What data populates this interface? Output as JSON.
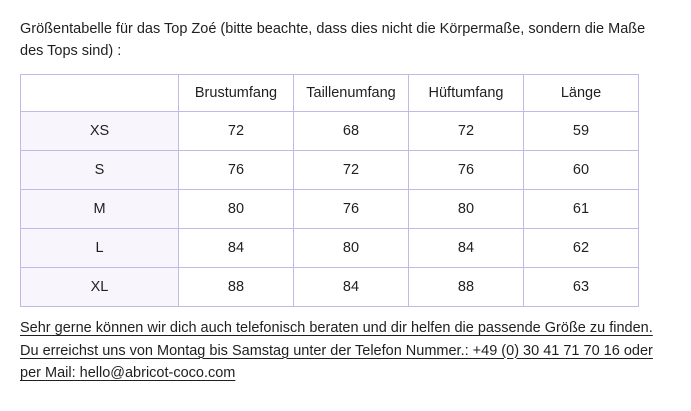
{
  "intro": {
    "lines": [
      "Größentabelle für das Top Zoé (bitte beachte, dass dies nicht die Körpermaße, sondern die Maße",
      "des Tops sind) :"
    ]
  },
  "table": {
    "headers": [
      "",
      "Brustumfang",
      "Taillenumfang",
      "Hüftumfang",
      "Länge"
    ],
    "rows": [
      {
        "size": "XS",
        "values": [
          "72",
          "68",
          "72",
          "59"
        ]
      },
      {
        "size": "S",
        "values": [
          "76",
          "72",
          "76",
          "60"
        ]
      },
      {
        "size": "M",
        "values": [
          "80",
          "76",
          "80",
          "61"
        ]
      },
      {
        "size": "L",
        "values": [
          "84",
          "80",
          "84",
          "62"
        ]
      },
      {
        "size": "XL",
        "values": [
          "88",
          "84",
          "88",
          "63"
        ]
      }
    ]
  },
  "contact": {
    "lines": [
      "Sehr gerne können wir dich auch telefonisch beraten und dir helfen die passende Größe zu finden.",
      "Du erreichst uns von Montag bis Samstag unter der Telefon Nummer.: +49 (0) 30 41 71 70 16 oder",
      "per Mail: hello@abricot-coco.com"
    ],
    "phone": "+49 (0) 30 41 71 70 16",
    "email": "hello@abricot-coco.com"
  },
  "colors": {
    "table_border": "#c3b9e8",
    "size_column_bg": "#f9f5fc",
    "text": "#1f1f1f",
    "background": "#ffffff"
  }
}
